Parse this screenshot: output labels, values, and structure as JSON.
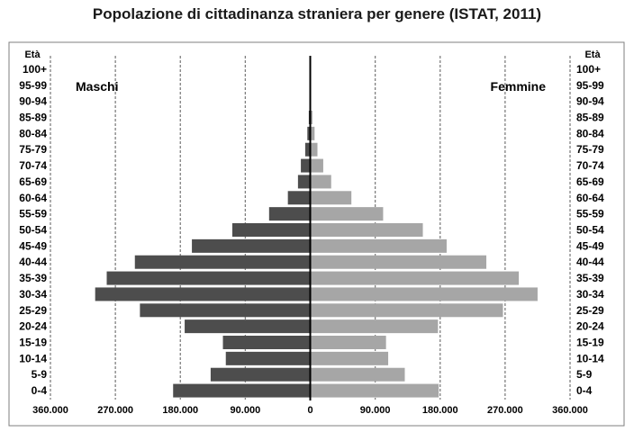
{
  "chart_data": {
    "type": "bar",
    "title": "Popolazione di cittadinanza straniera per genere (ISTAT, 2011)",
    "axis_header": "Età",
    "categories": [
      "0-4",
      "5-9",
      "10-14",
      "15-19",
      "20-24",
      "25-29",
      "30-34",
      "35-39",
      "40-44",
      "45-49",
      "50-54",
      "55-59",
      "60-64",
      "65-69",
      "70-74",
      "75-79",
      "80-84",
      "85-89",
      "90-94",
      "95-99",
      "100+"
    ],
    "series": [
      {
        "name": "Maschi",
        "values": [
          190000,
          138000,
          117000,
          121000,
          174000,
          236000,
          298000,
          282000,
          243000,
          164000,
          108000,
          57000,
          31000,
          17000,
          13000,
          7000,
          4000,
          2000,
          500,
          200,
          50
        ]
      },
      {
        "name": "Femmine",
        "values": [
          178000,
          131000,
          108000,
          105000,
          177000,
          267000,
          315000,
          289000,
          244000,
          189000,
          156000,
          101000,
          57000,
          29000,
          18000,
          10000,
          6000,
          3000,
          1000,
          300,
          100
        ]
      }
    ],
    "x_ticks": [
      -360000,
      -270000,
      -180000,
      -90000,
      0,
      90000,
      180000,
      270000,
      360000
    ],
    "x_tick_labels": [
      "360.000",
      "270.000",
      "180.000",
      "90.000",
      "0",
      "90.000",
      "180.000",
      "270.000",
      "360.000"
    ],
    "xlim": [
      -360000,
      360000
    ],
    "gridlines": "dashed-vertical",
    "colors": {
      "maschi": "#4d4d4d",
      "femmine": "#a6a6a6",
      "grid": "#7f7f7f",
      "frame": "#7f7f7f"
    }
  }
}
